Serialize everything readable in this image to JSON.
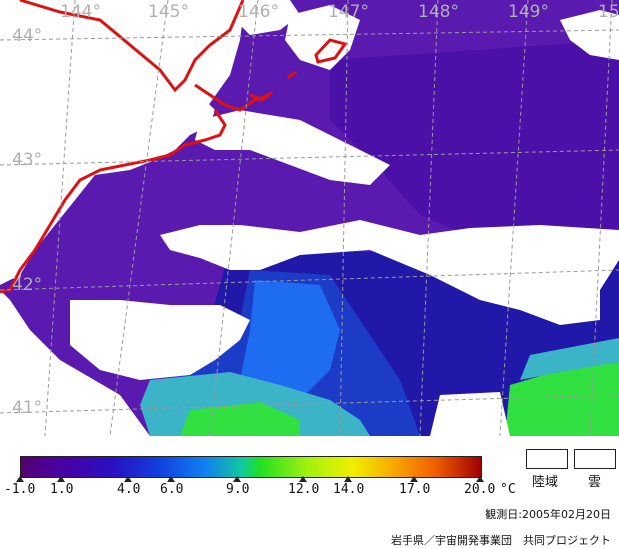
{
  "map": {
    "longitudes": [
      "144°",
      "145°",
      "146°",
      "147°",
      "148°",
      "149°",
      "15"
    ],
    "latitudes": [
      "44°",
      "43°",
      "42°",
      "41°"
    ],
    "colors": {
      "cold_water": "#5a1ab0",
      "deep_violet": "#4a10a8",
      "navy": "#2018a8",
      "blue": "#1c3cc8",
      "bright_blue": "#1e6cf0",
      "teal": "#3cb4c8",
      "green": "#30e040",
      "cloud": "#ffffff",
      "land": "#ffffff",
      "coastline": "#e01010",
      "gridline": "#9a9a9a"
    }
  },
  "legend": {
    "ticks": [
      "-1.0",
      "1.0",
      "4.0",
      "6.0",
      "9.0",
      "12.0",
      "14.0",
      "17.0",
      "20.0"
    ],
    "unit": "°C",
    "land_label": "陸域",
    "cloud_label": "雲",
    "observation_date": "観測日:2005年02月20日",
    "credit": "岩手県／宇宙開発事業団　共同プロジェクト"
  }
}
